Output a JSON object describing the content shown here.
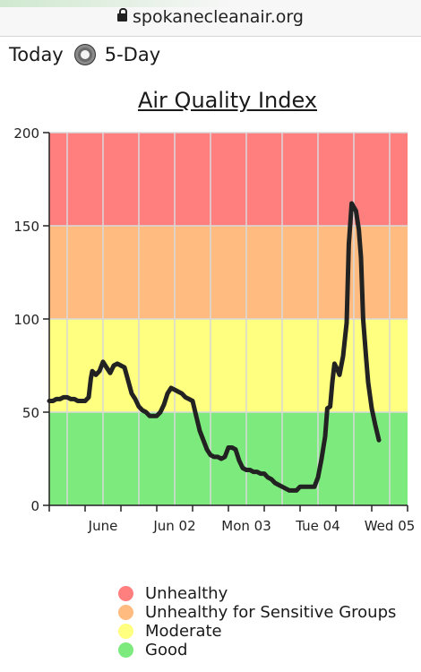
{
  "browser": {
    "url": "spokanecleanair.org"
  },
  "mode": {
    "left_label": "Today",
    "right_label": "5-Day"
  },
  "chart_data": {
    "type": "line",
    "title": "Air Quality Index",
    "xlabel": "",
    "ylabel": "",
    "ylim": [
      0,
      200
    ],
    "yticks": [
      0,
      50,
      100,
      150,
      200
    ],
    "xlim": [
      0,
      5
    ],
    "xticks": [
      {
        "label": "June",
        "x": 0.75
      },
      {
        "label": "Jun 02",
        "x": 1.75
      },
      {
        "label": "Mon 03",
        "x": 2.75
      },
      {
        "label": "Tue 04",
        "x": 3.75
      },
      {
        "label": "Wed 05",
        "x": 4.75
      }
    ],
    "grid": true,
    "bands": [
      {
        "name": "Good",
        "from": 0,
        "to": 50,
        "color": "#7dea7d"
      },
      {
        "name": "Moderate",
        "from": 50,
        "to": 100,
        "color": "#ffff80"
      },
      {
        "name": "Unhealthy for Sensitive Groups",
        "from": 100,
        "to": 150,
        "color": "#ffbb80"
      },
      {
        "name": "Unhealthy",
        "from": 150,
        "to": 200,
        "color": "#ff7f7f"
      }
    ],
    "series": [
      {
        "color": "#222222",
        "points": [
          [
            0.0,
            56
          ],
          [
            0.05,
            56
          ],
          [
            0.1,
            57
          ],
          [
            0.15,
            57
          ],
          [
            0.2,
            58
          ],
          [
            0.25,
            58
          ],
          [
            0.3,
            57
          ],
          [
            0.35,
            57
          ],
          [
            0.4,
            56
          ],
          [
            0.45,
            56
          ],
          [
            0.5,
            56
          ],
          [
            0.55,
            58
          ],
          [
            0.58,
            68
          ],
          [
            0.6,
            72
          ],
          [
            0.65,
            70
          ],
          [
            0.7,
            72
          ],
          [
            0.75,
            77
          ],
          [
            0.8,
            74
          ],
          [
            0.85,
            71
          ],
          [
            0.9,
            75
          ],
          [
            0.95,
            76
          ],
          [
            1.0,
            75
          ],
          [
            1.05,
            74
          ],
          [
            1.1,
            67
          ],
          [
            1.15,
            60
          ],
          [
            1.2,
            57
          ],
          [
            1.25,
            53
          ],
          [
            1.3,
            51
          ],
          [
            1.35,
            50
          ],
          [
            1.4,
            48
          ],
          [
            1.45,
            48
          ],
          [
            1.5,
            48
          ],
          [
            1.55,
            50
          ],
          [
            1.6,
            54
          ],
          [
            1.65,
            60
          ],
          [
            1.7,
            63
          ],
          [
            1.75,
            62
          ],
          [
            1.8,
            61
          ],
          [
            1.85,
            60
          ],
          [
            1.9,
            58
          ],
          [
            1.95,
            57
          ],
          [
            2.0,
            56
          ],
          [
            2.05,
            48
          ],
          [
            2.1,
            40
          ],
          [
            2.15,
            35
          ],
          [
            2.2,
            30
          ],
          [
            2.25,
            27
          ],
          [
            2.3,
            26
          ],
          [
            2.35,
            26
          ],
          [
            2.4,
            25
          ],
          [
            2.45,
            26
          ],
          [
            2.5,
            31
          ],
          [
            2.55,
            31
          ],
          [
            2.6,
            30
          ],
          [
            2.65,
            24
          ],
          [
            2.7,
            20
          ],
          [
            2.75,
            19
          ],
          [
            2.8,
            19
          ],
          [
            2.85,
            18
          ],
          [
            2.9,
            18
          ],
          [
            2.95,
            17
          ],
          [
            3.0,
            17
          ],
          [
            3.05,
            15
          ],
          [
            3.1,
            14
          ],
          [
            3.15,
            12
          ],
          [
            3.2,
            11
          ],
          [
            3.25,
            10
          ],
          [
            3.3,
            9
          ],
          [
            3.35,
            8
          ],
          [
            3.4,
            8
          ],
          [
            3.45,
            8
          ],
          [
            3.5,
            10
          ],
          [
            3.55,
            10
          ],
          [
            3.6,
            10
          ],
          [
            3.65,
            10
          ],
          [
            3.7,
            10
          ],
          [
            3.75,
            15
          ],
          [
            3.8,
            25
          ],
          [
            3.85,
            37
          ],
          [
            3.88,
            52
          ],
          [
            3.92,
            53
          ],
          [
            3.95,
            66
          ],
          [
            3.98,
            76
          ],
          [
            4.02,
            73
          ],
          [
            4.05,
            70
          ],
          [
            4.1,
            80
          ],
          [
            4.15,
            98
          ],
          [
            4.18,
            140
          ],
          [
            4.22,
            162
          ],
          [
            4.28,
            158
          ],
          [
            4.32,
            148
          ],
          [
            4.35,
            133
          ],
          [
            4.38,
            100
          ],
          [
            4.42,
            80
          ],
          [
            4.45,
            66
          ],
          [
            4.5,
            52
          ],
          [
            4.55,
            43
          ],
          [
            4.6,
            35
          ]
        ]
      }
    ],
    "legend": {
      "position": "bottom",
      "entries": [
        {
          "label": "Unhealthy",
          "color": "#ff7f7f"
        },
        {
          "label": "Unhealthy for Sensitive Groups",
          "color": "#ffbb80"
        },
        {
          "label": "Moderate",
          "color": "#ffff80"
        },
        {
          "label": "Good",
          "color": "#7dea7d"
        }
      ]
    }
  }
}
